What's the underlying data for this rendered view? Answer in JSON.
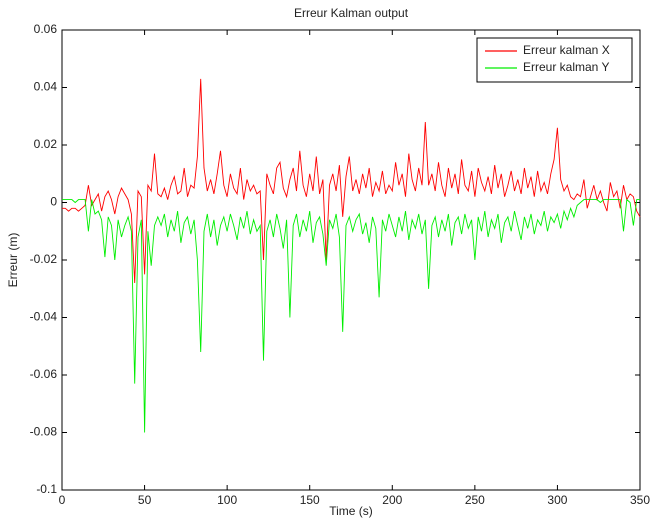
{
  "chart_data": {
    "type": "line",
    "title": "Erreur Kalman output",
    "xlabel": "Time (s)",
    "ylabel": "Erreur (m)",
    "x": [
      0,
      2,
      4,
      6,
      8,
      10,
      12,
      14,
      16,
      18,
      20,
      22,
      24,
      26,
      28,
      30,
      32,
      34,
      36,
      38,
      40,
      42,
      44,
      46,
      48,
      50,
      52,
      54,
      56,
      58,
      60,
      62,
      64,
      66,
      68,
      70,
      72,
      74,
      76,
      78,
      80,
      82,
      84,
      86,
      88,
      90,
      92,
      94,
      96,
      98,
      100,
      102,
      104,
      106,
      108,
      110,
      112,
      114,
      116,
      118,
      120,
      122,
      124,
      126,
      128,
      130,
      132,
      134,
      136,
      138,
      140,
      142,
      144,
      146,
      148,
      150,
      152,
      154,
      156,
      158,
      160,
      162,
      164,
      166,
      168,
      170,
      172,
      174,
      176,
      178,
      180,
      182,
      184,
      186,
      188,
      190,
      192,
      194,
      196,
      198,
      200,
      202,
      204,
      206,
      208,
      210,
      212,
      214,
      216,
      218,
      220,
      222,
      224,
      226,
      228,
      230,
      232,
      234,
      236,
      238,
      240,
      242,
      244,
      246,
      248,
      250,
      252,
      254,
      256,
      258,
      260,
      262,
      264,
      266,
      268,
      270,
      272,
      274,
      276,
      278,
      280,
      282,
      284,
      286,
      288,
      290,
      292,
      294,
      296,
      298,
      300,
      302,
      304,
      306,
      308,
      310,
      312,
      314,
      316,
      318,
      320,
      322,
      324,
      326,
      328,
      330,
      332,
      334,
      336,
      338,
      340,
      342,
      344,
      346,
      348,
      350
    ],
    "series": [
      {
        "name": "Erreur kalman X",
        "color": "#ff0000",
        "values": [
          -0.002,
          -0.002,
          -0.003,
          -0.002,
          -0.002,
          -0.003,
          -0.002,
          -0.001,
          0.006,
          -0.001,
          0.001,
          0.003,
          -0.003,
          0.002,
          0.004,
          0.001,
          -0.004,
          0.002,
          0.005,
          0.003,
          0.001,
          -0.004,
          -0.028,
          0.004,
          0.002,
          -0.025,
          0.006,
          0.004,
          0.017,
          0.003,
          0.002,
          0.005,
          0.001,
          0.006,
          0.009,
          0.003,
          0.004,
          0.012,
          0.002,
          0.006,
          0.005,
          0.016,
          0.043,
          0.012,
          0.004,
          0.008,
          0.003,
          0.01,
          0.018,
          0.006,
          0.002,
          0.01,
          0.005,
          0.003,
          0.012,
          0.001,
          0.008,
          0.004,
          0.006,
          0.003,
          0.004,
          -0.02,
          0.01,
          0.006,
          0.003,
          0.012,
          0.014,
          0.005,
          0.002,
          0.008,
          0.012,
          0.004,
          0.018,
          0.006,
          0.002,
          0.01,
          0.004,
          0.016,
          0.003,
          0.008,
          -0.02,
          0.006,
          0.01,
          0.004,
          0.013,
          -0.005,
          0.009,
          0.016,
          0.004,
          0.008,
          0.003,
          0.01,
          0.005,
          0.012,
          0.002,
          0.007,
          0.004,
          0.011,
          0.003,
          0.006,
          0.004,
          0.014,
          0.006,
          0.01,
          0.002,
          0.017,
          0.008,
          0.004,
          0.012,
          0.006,
          0.028,
          0.006,
          0.01,
          0.004,
          0.014,
          0.006,
          0.002,
          0.012,
          0.005,
          0.01,
          0.003,
          0.015,
          0.006,
          0.004,
          0.011,
          0.002,
          0.012,
          0.007,
          0.004,
          0.009,
          0.003,
          0.013,
          0.005,
          0.01,
          0.002,
          0.006,
          0.011,
          0.004,
          0.008,
          0.003,
          0.012,
          0.005,
          0.009,
          0.002,
          0.011,
          0.004,
          0.007,
          0.003,
          0.01,
          0.015,
          0.026,
          0.008,
          0.004,
          0.006,
          0.002,
          0.001,
          0.003,
          0.002,
          0.008,
          -0.002,
          0.002,
          0.006,
          0.001,
          0.004,
          0.0,
          -0.003,
          0.007,
          0.002,
          0.004,
          -0.002,
          0.006,
          0.001,
          0.003,
          0.002,
          -0.003,
          -0.005
        ]
      },
      {
        "name": "Erreur kalman Y",
        "color": "#00ee00",
        "values": [
          0.001,
          0.001,
          0.001,
          0.001,
          0.0,
          0.001,
          0.001,
          0.001,
          -0.01,
          0.001,
          -0.004,
          -0.003,
          -0.006,
          -0.019,
          -0.005,
          -0.008,
          -0.02,
          -0.006,
          -0.012,
          -0.008,
          -0.005,
          -0.01,
          -0.063,
          -0.012,
          -0.006,
          -0.08,
          -0.01,
          -0.022,
          -0.008,
          -0.005,
          -0.008,
          -0.004,
          -0.012,
          -0.006,
          -0.01,
          -0.003,
          -0.014,
          -0.007,
          -0.005,
          -0.011,
          -0.006,
          -0.02,
          -0.052,
          -0.01,
          -0.004,
          -0.012,
          -0.006,
          -0.015,
          -0.008,
          -0.005,
          -0.01,
          -0.004,
          -0.008,
          -0.013,
          -0.005,
          -0.009,
          -0.003,
          -0.011,
          -0.006,
          -0.01,
          -0.008,
          -0.055,
          -0.01,
          -0.006,
          -0.012,
          -0.004,
          -0.009,
          -0.016,
          -0.006,
          -0.04,
          -0.008,
          -0.004,
          -0.012,
          -0.006,
          -0.01,
          -0.003,
          -0.014,
          -0.007,
          -0.005,
          -0.011,
          -0.022,
          -0.006,
          -0.009,
          -0.004,
          -0.012,
          -0.045,
          -0.008,
          -0.005,
          -0.01,
          -0.006,
          -0.004,
          -0.011,
          -0.007,
          -0.014,
          -0.005,
          -0.009,
          -0.033,
          -0.006,
          -0.01,
          -0.004,
          -0.008,
          -0.012,
          -0.005,
          -0.01,
          -0.003,
          -0.013,
          -0.006,
          -0.009,
          -0.004,
          -0.011,
          -0.006,
          -0.03,
          -0.008,
          -0.005,
          -0.012,
          -0.006,
          -0.01,
          -0.004,
          -0.015,
          -0.007,
          -0.005,
          -0.011,
          -0.004,
          -0.009,
          -0.006,
          -0.02,
          -0.005,
          -0.01,
          -0.003,
          -0.012,
          -0.006,
          -0.009,
          -0.004,
          -0.014,
          -0.007,
          -0.005,
          -0.01,
          -0.003,
          -0.008,
          -0.013,
          -0.005,
          -0.009,
          -0.004,
          -0.011,
          -0.006,
          -0.008,
          -0.003,
          -0.01,
          -0.005,
          -0.007,
          -0.004,
          -0.009,
          -0.003,
          -0.006,
          -0.002,
          -0.005,
          -0.001,
          0.0,
          0.001,
          0.001,
          0.001,
          0.001,
          0.001,
          0.0,
          0.001,
          0.001,
          0.001,
          0.001,
          0.001,
          0.001,
          -0.01,
          0.001,
          0.0,
          -0.008,
          0.001,
          0.001
        ]
      }
    ],
    "xlim": [
      0,
      350
    ],
    "xticks": [
      0,
      50,
      100,
      150,
      200,
      250,
      300,
      350
    ],
    "ylim": [
      -0.1,
      0.06
    ],
    "yticks": [
      -0.1,
      -0.08,
      -0.06,
      -0.04,
      -0.02,
      0,
      0.02,
      0.04,
      0.06
    ],
    "legend": "top-right"
  }
}
